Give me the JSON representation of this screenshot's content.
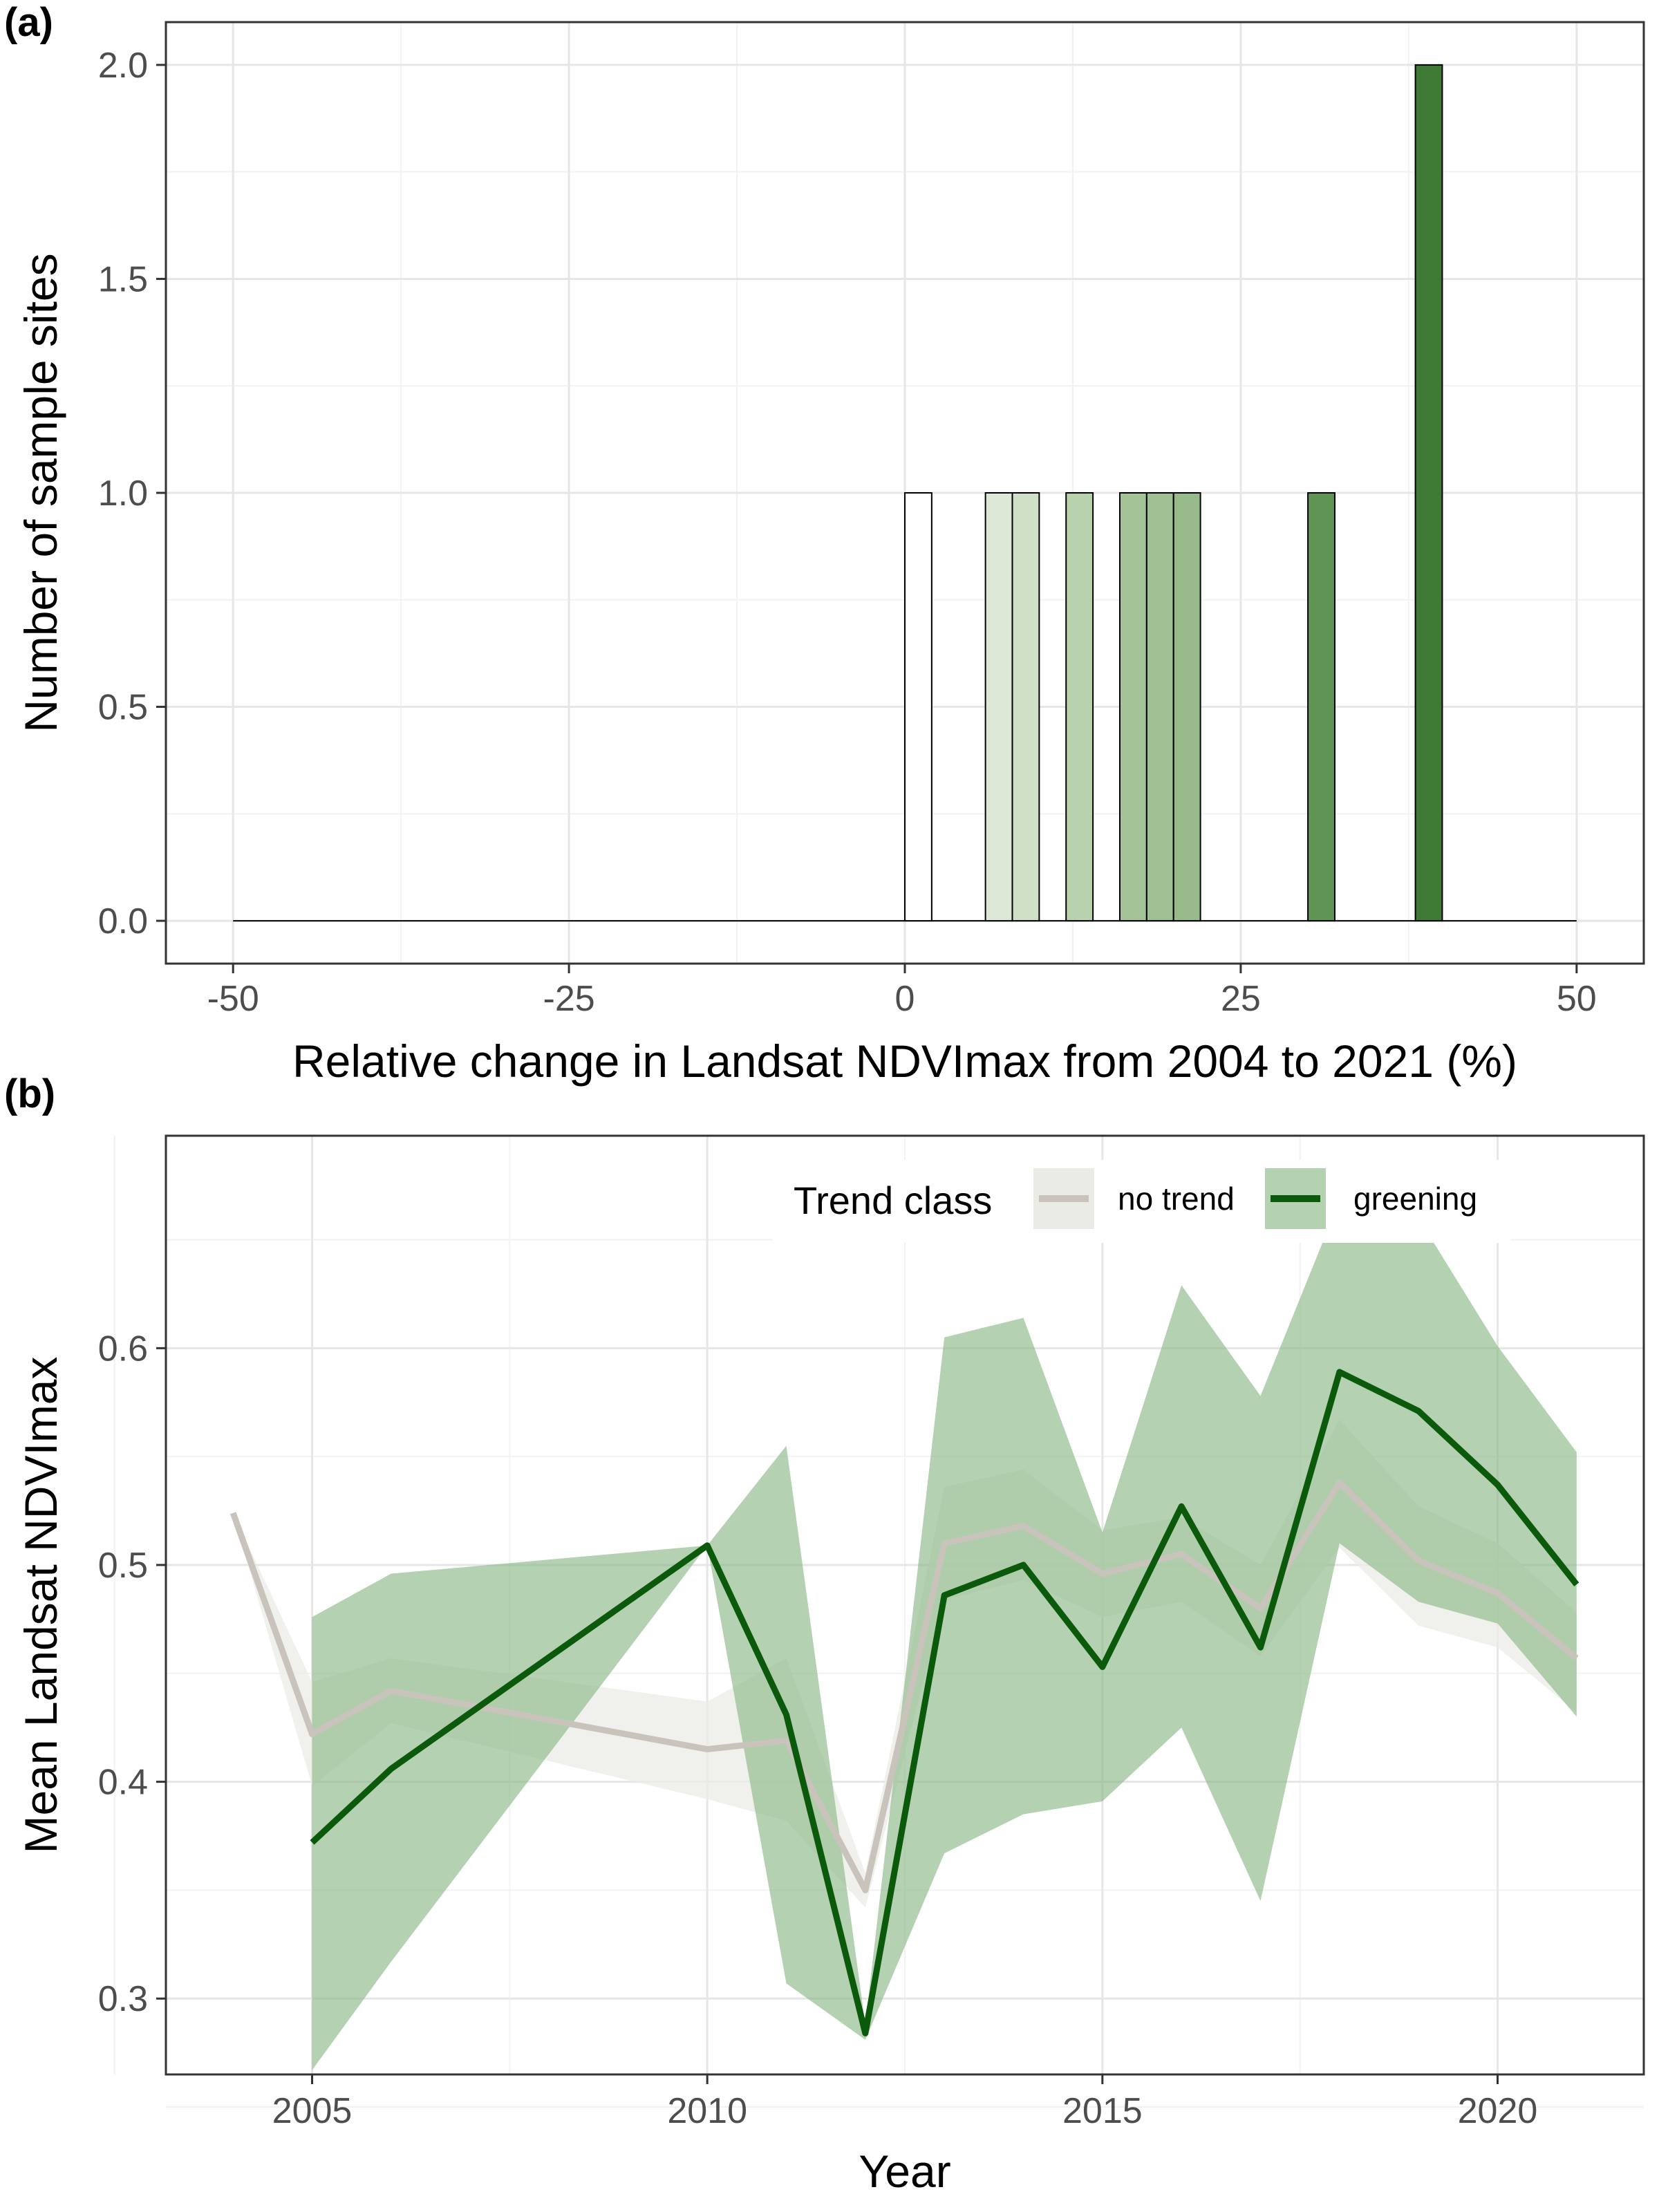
{
  "panels": {
    "a": {
      "label": "(a)"
    },
    "b": {
      "label": "(b)"
    }
  },
  "colors": {
    "grid_major": "#e6e6e6",
    "grid_minor": "#f2f2f2",
    "frame": "#333333",
    "no_trend_line": "#c8c4bb",
    "no_trend_ribbon": "#ebebe6",
    "greening_line": "#0b5a0b",
    "greening_ribbon": "#8cb888"
  },
  "chart_data": [
    {
      "type": "bar",
      "panel": "a",
      "xlabel": "Relative change in Landsat NDVImax from 2004 to 2021 (%)",
      "ylabel": "Number of sample sites",
      "xlim": [
        -55,
        55
      ],
      "ylim": [
        -0.1,
        2.1
      ],
      "x_ticks": [
        -50,
        -25,
        0,
        25,
        50
      ],
      "x_tick_labels": [
        "-50",
        "-25",
        "0",
        "25",
        "50"
      ],
      "y_ticks": [
        0.0,
        0.5,
        1.0,
        1.5,
        2.0
      ],
      "y_tick_labels": [
        "0.0",
        "0.5",
        "1.0",
        "1.5",
        "2.0"
      ],
      "baseline_range": [
        -50,
        50
      ],
      "bin_width": 2,
      "bins": [
        {
          "x": 0,
          "value": 1,
          "color": "#ffffff"
        },
        {
          "x": 6,
          "value": 1,
          "color": "#dde9d6"
        },
        {
          "x": 8,
          "value": 1,
          "color": "#cfe0c6"
        },
        {
          "x": 12,
          "value": 1,
          "color": "#b9d2ae"
        },
        {
          "x": 16,
          "value": 1,
          "color": "#a4c498"
        },
        {
          "x": 18,
          "value": 1,
          "color": "#9ec093"
        },
        {
          "x": 20,
          "value": 1,
          "color": "#97bb8b"
        },
        {
          "x": 30,
          "value": 1,
          "color": "#5f9455"
        },
        {
          "x": 38,
          "value": 2,
          "color": "#3f7a34"
        }
      ],
      "grid": true
    },
    {
      "type": "line",
      "panel": "b",
      "xlabel": "Year",
      "ylabel": "Mean Landsat NDVImax",
      "xlim": [
        2003.15,
        2021.85
      ],
      "ylim": [
        0.265,
        0.698
      ],
      "x_ticks": [
        2005,
        2010,
        2015,
        2020
      ],
      "x_tick_labels": [
        "2005",
        "2010",
        "2015",
        "2020"
      ],
      "y_ticks": [
        0.3,
        0.4,
        0.5,
        0.6
      ],
      "y_tick_labels": [
        "0.3",
        "0.4",
        "0.5",
        "0.6"
      ],
      "grid": true,
      "legend": {
        "title": "Trend class",
        "position": "top-right",
        "entries": [
          "no trend",
          "greening"
        ]
      },
      "series": [
        {
          "name": "no trend",
          "x": [
            2004,
            2005,
            2006,
            2010,
            2011,
            2012,
            2013,
            2014,
            2015,
            2016,
            2017,
            2018,
            2019,
            2020,
            2021
          ],
          "y": [
            0.524,
            0.422,
            0.442,
            0.415,
            0.419,
            0.35,
            0.51,
            0.518,
            0.496,
            0.505,
            0.48,
            0.538,
            0.502,
            0.487,
            0.457
          ],
          "lower": [
            0.524,
            0.398,
            0.427,
            0.392,
            0.382,
            0.342,
            0.484,
            0.493,
            0.476,
            0.483,
            0.458,
            0.508,
            0.472,
            0.462,
            0.432
          ],
          "upper": [
            0.524,
            0.446,
            0.457,
            0.437,
            0.457,
            0.358,
            0.536,
            0.544,
            0.516,
            0.522,
            0.5,
            0.567,
            0.527,
            0.51,
            0.478
          ]
        },
        {
          "name": "greening",
          "x": [
            2005,
            2006,
            2010,
            2011,
            2012,
            2013,
            2014,
            2015,
            2016,
            2017,
            2018,
            2019,
            2020,
            2021
          ],
          "y": [
            0.372,
            0.406,
            0.509,
            0.431,
            0.284,
            0.486,
            0.5,
            0.453,
            0.527,
            0.462,
            0.589,
            0.571,
            0.537,
            0.491
          ],
          "lower": [
            0.267,
            0.317,
            0.509,
            0.307,
            0.281,
            0.367,
            0.385,
            0.391,
            0.425,
            0.345,
            0.51,
            0.483,
            0.473,
            0.43
          ],
          "upper": [
            0.476,
            0.496,
            0.509,
            0.555,
            0.288,
            0.605,
            0.614,
            0.515,
            0.629,
            0.578,
            0.668,
            0.66,
            0.601,
            0.552
          ]
        }
      ]
    }
  ]
}
